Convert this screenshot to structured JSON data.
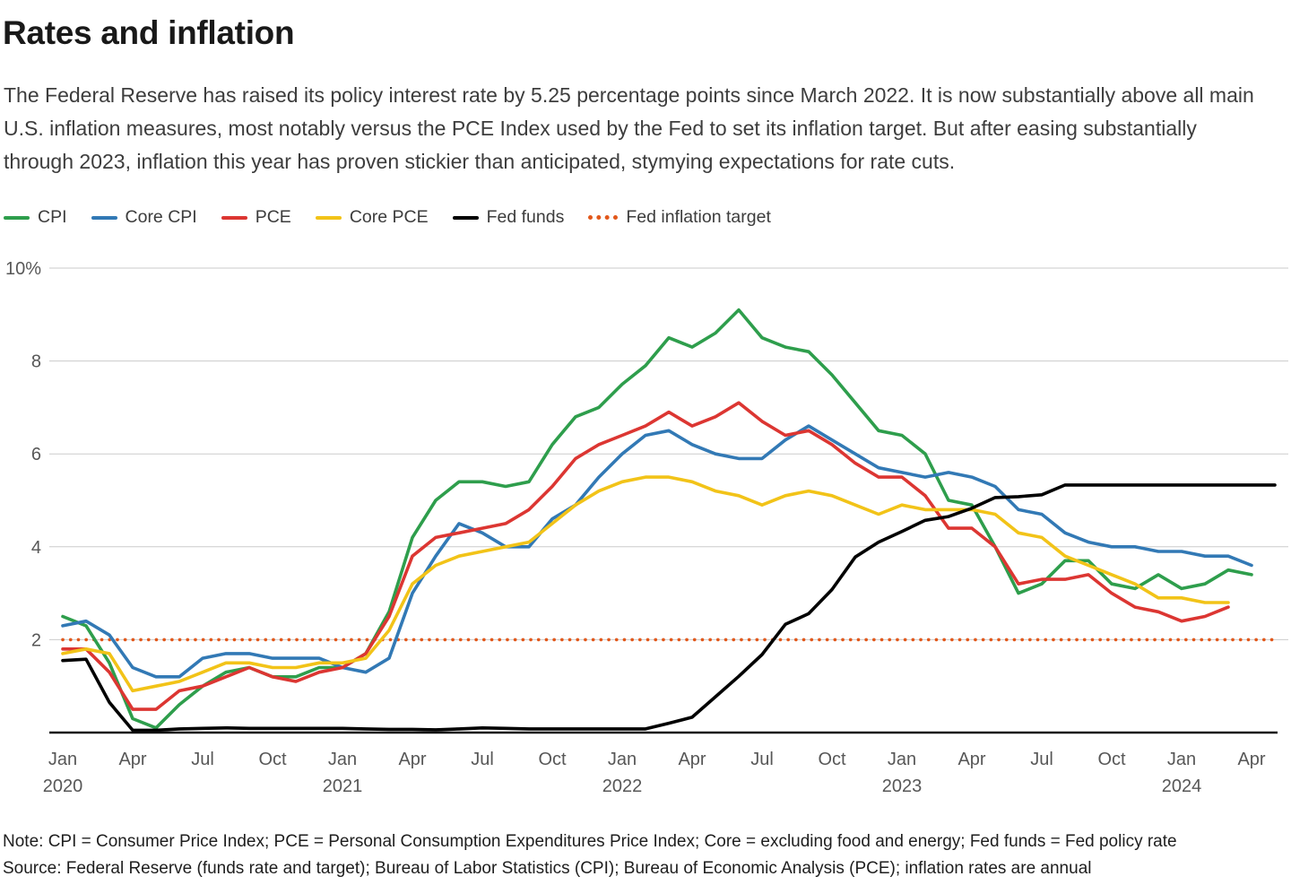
{
  "header": {
    "title": "Rates and inflation",
    "subtitle": "The Federal Reserve has raised its policy interest rate by 5.25 percentage points since March 2022. It is now substantially above all main U.S. inflation measures, most notably versus the PCE Index used by the Fed to set its inflation target. But after easing substantially through 2023, inflation this year has proven stickier than anticipated, stymying expectations for rate cuts."
  },
  "legend": [
    {
      "label": "CPI",
      "color": "#2e9e4c",
      "dotted": false
    },
    {
      "label": "Core CPI",
      "color": "#3279b5",
      "dotted": false
    },
    {
      "label": "PCE",
      "color": "#dc3632",
      "dotted": false
    },
    {
      "label": "Core PCE",
      "color": "#f2c318",
      "dotted": false
    },
    {
      "label": "Fed funds",
      "color": "#000000",
      "dotted": false
    },
    {
      "label": "Fed inflation target",
      "color": "#e2581b",
      "dotted": true
    }
  ],
  "chart_data": {
    "type": "line",
    "unit": "percent, annual rate",
    "start_month": "Jan 2020",
    "frequency": "monthly",
    "ylim": [
      0,
      10
    ],
    "grid": true,
    "legend_position": "top",
    "y_ticks": [
      {
        "value": 10,
        "label": "10%"
      },
      {
        "value": 8,
        "label": "8"
      },
      {
        "value": 6,
        "label": "6"
      },
      {
        "value": 4,
        "label": "4"
      },
      {
        "value": 2,
        "label": "2"
      }
    ],
    "x_ticks": [
      {
        "month_index": 0,
        "label": "Jan",
        "year": "2020"
      },
      {
        "month_index": 3,
        "label": "Apr",
        "year": ""
      },
      {
        "month_index": 6,
        "label": "Jul",
        "year": ""
      },
      {
        "month_index": 9,
        "label": "Oct",
        "year": ""
      },
      {
        "month_index": 12,
        "label": "Jan",
        "year": "2021"
      },
      {
        "month_index": 15,
        "label": "Apr",
        "year": ""
      },
      {
        "month_index": 18,
        "label": "Jul",
        "year": ""
      },
      {
        "month_index": 21,
        "label": "Oct",
        "year": ""
      },
      {
        "month_index": 24,
        "label": "Jan",
        "year": "2022"
      },
      {
        "month_index": 27,
        "label": "Apr",
        "year": ""
      },
      {
        "month_index": 30,
        "label": "Jul",
        "year": ""
      },
      {
        "month_index": 33,
        "label": "Oct",
        "year": ""
      },
      {
        "month_index": 36,
        "label": "Jan",
        "year": "2023"
      },
      {
        "month_index": 39,
        "label": "Apr",
        "year": ""
      },
      {
        "month_index": 42,
        "label": "Jul",
        "year": ""
      },
      {
        "month_index": 45,
        "label": "Oct",
        "year": ""
      },
      {
        "month_index": 48,
        "label": "Jan",
        "year": "2024"
      },
      {
        "month_index": 51,
        "label": "Apr",
        "year": ""
      }
    ],
    "series": [
      {
        "name": "CPI",
        "color": "#2e9e4c",
        "style": "solid",
        "values": [
          2.5,
          2.3,
          1.5,
          0.3,
          0.1,
          0.6,
          1.0,
          1.3,
          1.4,
          1.2,
          1.2,
          1.4,
          1.4,
          1.7,
          2.6,
          4.2,
          5.0,
          5.4,
          5.4,
          5.3,
          5.4,
          6.2,
          6.8,
          7.0,
          7.5,
          7.9,
          8.5,
          8.3,
          8.6,
          9.1,
          8.5,
          8.3,
          8.2,
          7.7,
          7.1,
          6.5,
          6.4,
          6.0,
          5.0,
          4.9,
          4.0,
          3.0,
          3.2,
          3.7,
          3.7,
          3.2,
          3.1,
          3.4,
          3.1,
          3.2,
          3.5,
          3.4
        ]
      },
      {
        "name": "Core CPI",
        "color": "#3279b5",
        "style": "solid",
        "values": [
          2.3,
          2.4,
          2.1,
          1.4,
          1.2,
          1.2,
          1.6,
          1.7,
          1.7,
          1.6,
          1.6,
          1.6,
          1.4,
          1.3,
          1.6,
          3.0,
          3.8,
          4.5,
          4.3,
          4.0,
          4.0,
          4.6,
          4.9,
          5.5,
          6.0,
          6.4,
          6.5,
          6.2,
          6.0,
          5.9,
          5.9,
          6.3,
          6.6,
          6.3,
          6.0,
          5.7,
          5.6,
          5.5,
          5.6,
          5.5,
          5.3,
          4.8,
          4.7,
          4.3,
          4.1,
          4.0,
          4.0,
          3.9,
          3.9,
          3.8,
          3.8,
          3.6
        ]
      },
      {
        "name": "PCE",
        "color": "#dc3632",
        "style": "solid",
        "values": [
          1.8,
          1.8,
          1.3,
          0.5,
          0.5,
          0.9,
          1.0,
          1.2,
          1.4,
          1.2,
          1.1,
          1.3,
          1.4,
          1.7,
          2.5,
          3.8,
          4.2,
          4.3,
          4.4,
          4.5,
          4.8,
          5.3,
          5.9,
          6.2,
          6.4,
          6.6,
          6.9,
          6.6,
          6.8,
          7.1,
          6.7,
          6.4,
          6.5,
          6.2,
          5.8,
          5.5,
          5.5,
          5.1,
          4.4,
          4.4,
          4.0,
          3.2,
          3.3,
          3.3,
          3.4,
          3.0,
          2.7,
          2.6,
          2.4,
          2.5,
          2.7
        ]
      },
      {
        "name": "Core PCE",
        "color": "#f2c318",
        "style": "solid",
        "values": [
          1.7,
          1.8,
          1.7,
          0.9,
          1.0,
          1.1,
          1.3,
          1.5,
          1.5,
          1.4,
          1.4,
          1.5,
          1.5,
          1.6,
          2.2,
          3.2,
          3.6,
          3.8,
          3.9,
          4.0,
          4.1,
          4.5,
          4.9,
          5.2,
          5.4,
          5.5,
          5.5,
          5.4,
          5.2,
          5.1,
          4.9,
          5.1,
          5.2,
          5.1,
          4.9,
          4.7,
          4.9,
          4.8,
          4.8,
          4.8,
          4.7,
          4.3,
          4.2,
          3.8,
          3.6,
          3.4,
          3.2,
          2.9,
          2.9,
          2.8,
          2.8
        ]
      },
      {
        "name": "Fed funds",
        "color": "#000000",
        "style": "solid",
        "values": [
          1.55,
          1.58,
          0.65,
          0.05,
          0.05,
          0.08,
          0.09,
          0.1,
          0.09,
          0.09,
          0.09,
          0.09,
          0.09,
          0.08,
          0.07,
          0.07,
          0.06,
          0.08,
          0.1,
          0.09,
          0.08,
          0.08,
          0.08,
          0.08,
          0.08,
          0.08,
          0.2,
          0.33,
          0.77,
          1.21,
          1.68,
          2.33,
          2.56,
          3.08,
          3.78,
          4.1,
          4.33,
          4.57,
          4.65,
          4.83,
          5.06,
          5.08,
          5.12,
          5.33,
          5.33,
          5.33,
          5.33,
          5.33,
          5.33,
          5.33,
          5.33,
          5.33,
          5.33
        ]
      },
      {
        "name": "Fed inflation target",
        "color": "#e2581b",
        "style": "dotted",
        "constant_value": 2.0
      }
    ]
  },
  "footer": {
    "note": "Note: CPI = Consumer Price Index; PCE = Personal Consumption Expenditures Price Index; Core = excluding food and energy; Fed funds = Fed policy rate",
    "source": "Source: Federal Reserve (funds rate and target); Bureau of Labor Statistics (CPI); Bureau of Economic Analysis (PCE); inflation rates are annual"
  }
}
